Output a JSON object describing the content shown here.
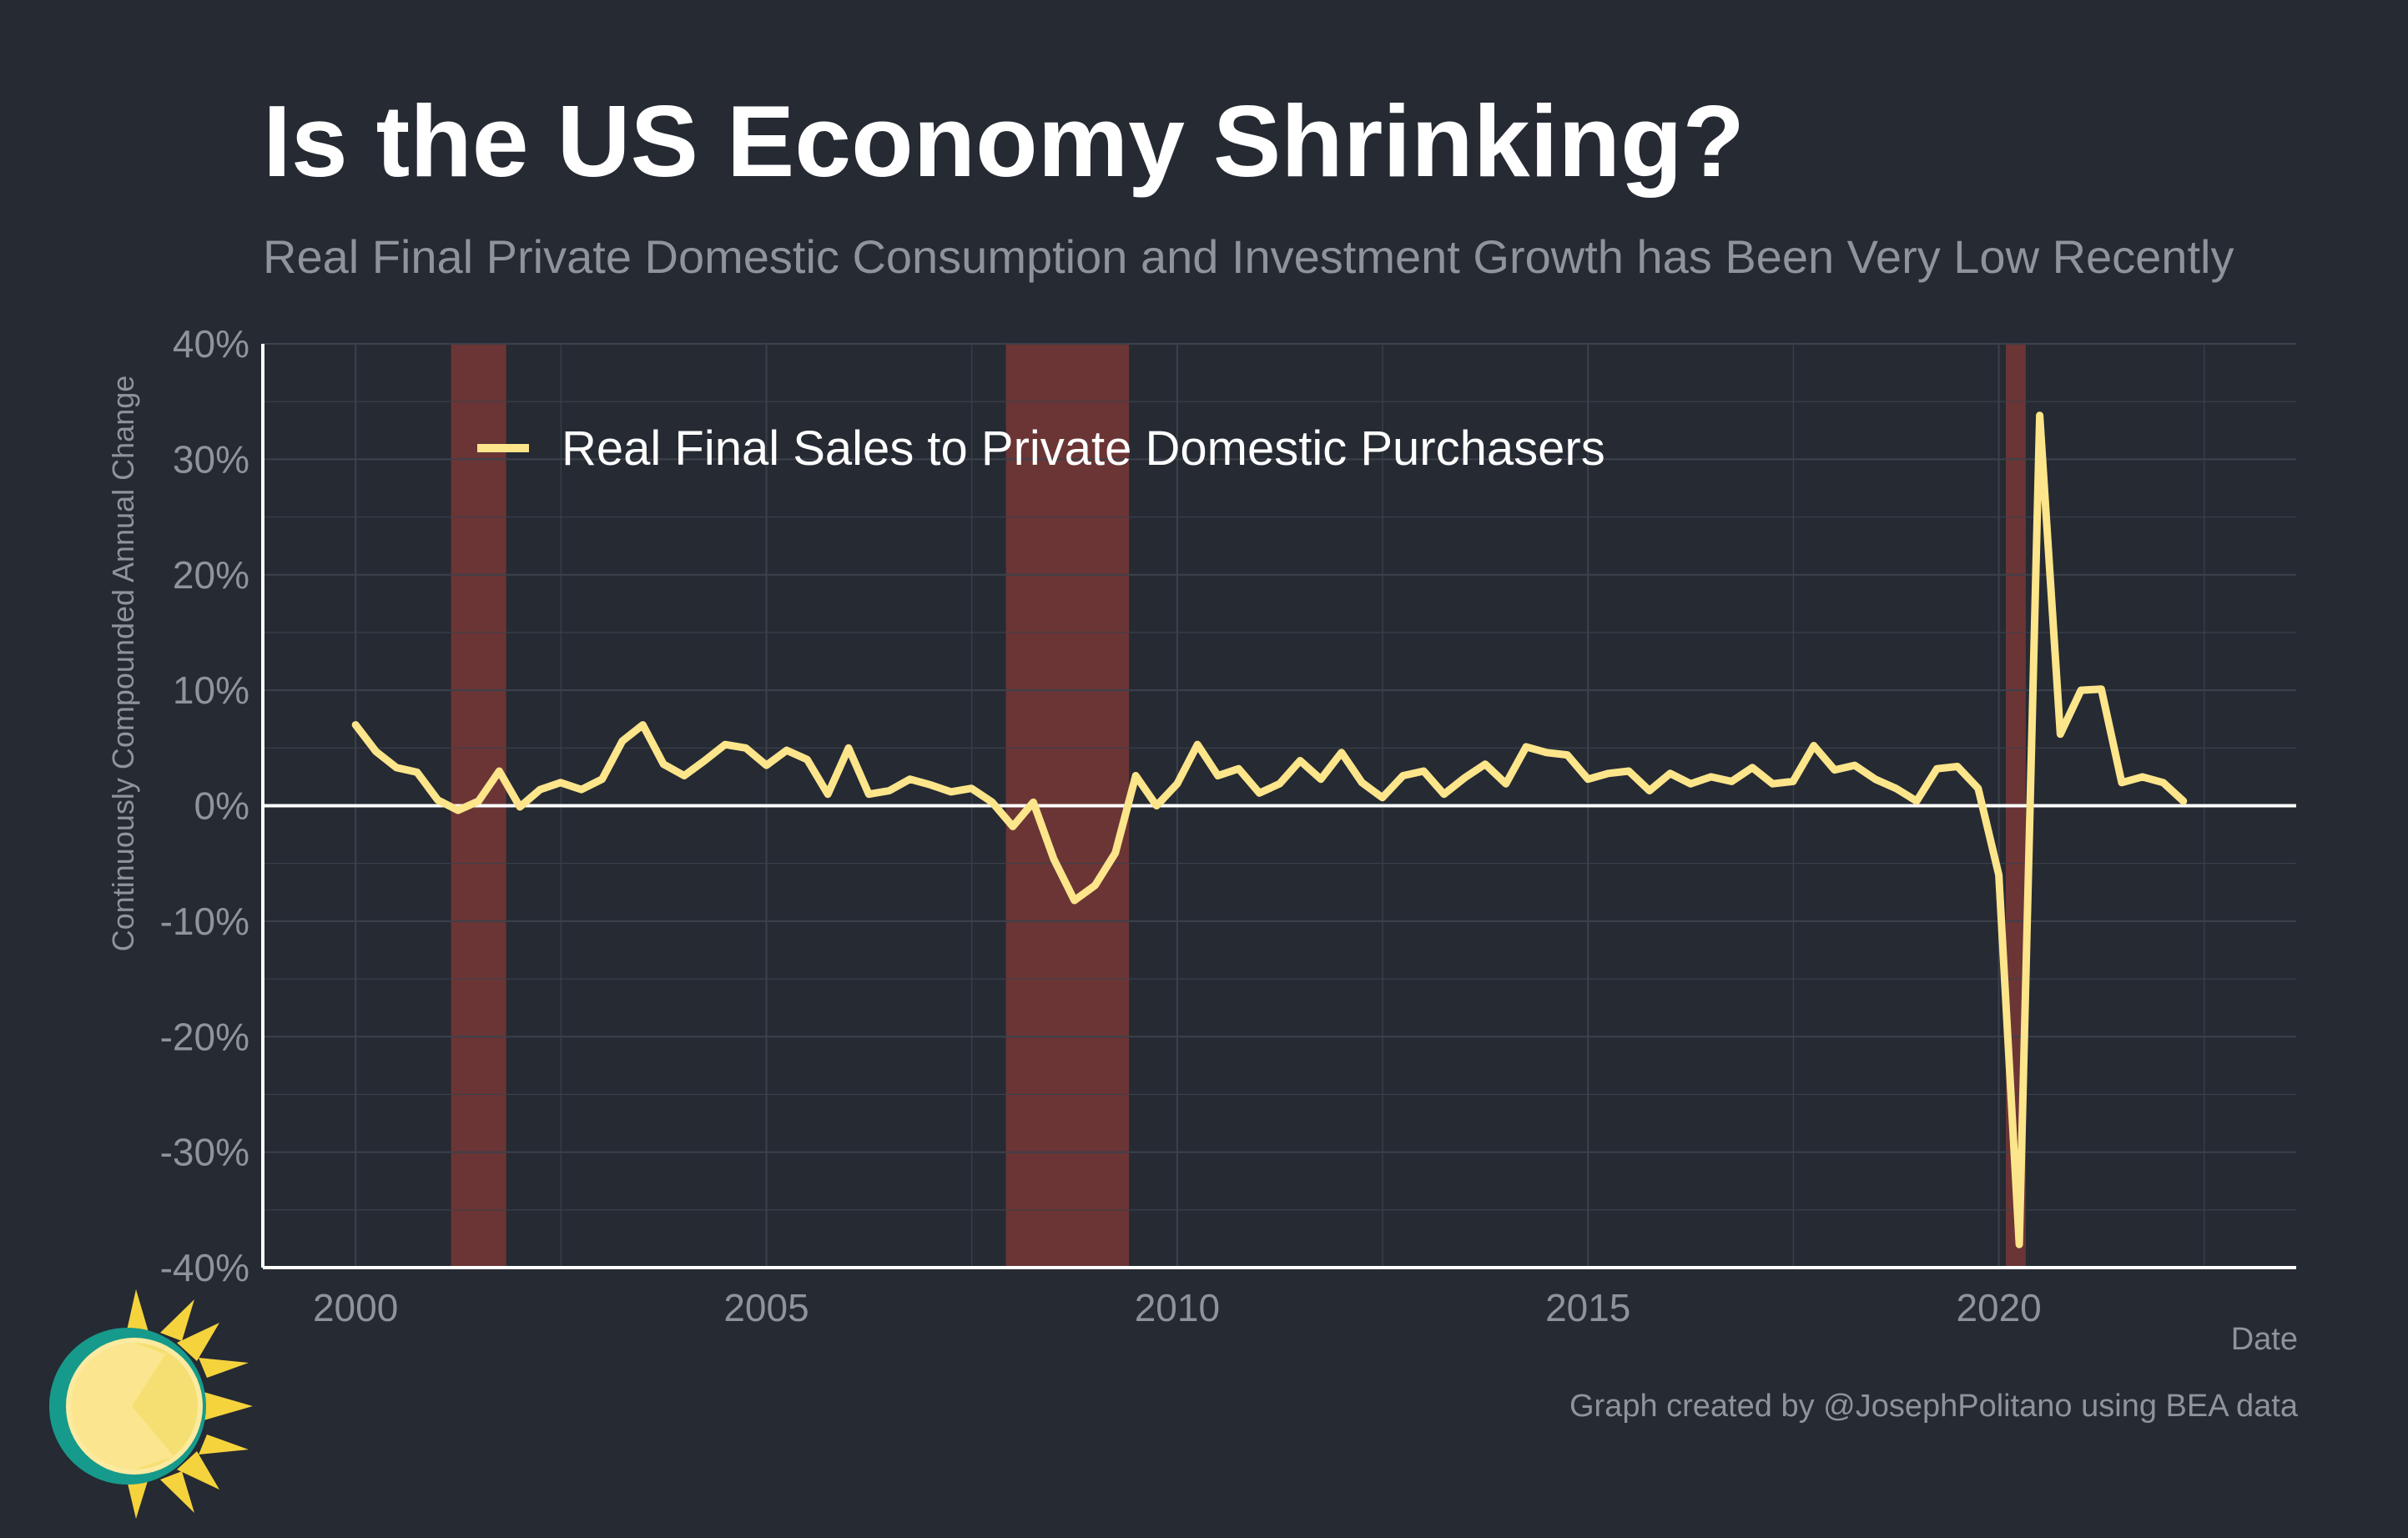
{
  "title": "Is the US Economy Shrinking?",
  "subtitle": "Real Final Private Domestic Consumption and Investment Growth has Been Very Low Recently",
  "caption": "Graph created by @JosephPolitano using BEA data",
  "colors": {
    "background": "#252a33",
    "series": "#fce58a",
    "recession": "#6b3535",
    "grid": "#3c414b",
    "axis": "#ffffff",
    "muted": "#8f939a"
  },
  "logo_icon": "sun-logo-icon",
  "chart_data": {
    "type": "line",
    "title": "Is the US Economy Shrinking?",
    "subtitle": "Real Final Private Domestic Consumption and Investment Growth has Been Very Low Recently",
    "xlabel": "Date",
    "ylabel": "Continuously Compounded Annual Change",
    "xlim": [
      "1998-11-15",
      "2023-08-15"
    ],
    "ylim": [
      -40,
      40
    ],
    "x_ticks": [
      2000,
      2005,
      2010,
      2015,
      2020
    ],
    "x_tick_labels": [
      "2000",
      "2005",
      "2010",
      "2015",
      "2020"
    ],
    "y_ticks": [
      -40,
      -30,
      -20,
      -10,
      0,
      10,
      20,
      30,
      40
    ],
    "y_tick_labels": [
      "-40%",
      "-30%",
      "-20%",
      "-10%",
      "0%",
      "10%",
      "20%",
      "30%",
      "40%"
    ],
    "grid": true,
    "zero_line": true,
    "legend_position": "top-left",
    "recessions": [
      [
        "2001-03-01",
        "2001-11-01"
      ],
      [
        "2007-12-01",
        "2009-06-01"
      ],
      [
        "2020-02-01",
        "2020-04-30"
      ]
    ],
    "series": [
      {
        "name": "Real Final Sales to Private Domestic Purchasers",
        "color": "#fce58a",
        "x": [
          "2000-01-01",
          "2000-04-01",
          "2000-07-01",
          "2000-10-01",
          "2001-01-01",
          "2001-04-01",
          "2001-07-01",
          "2001-10-01",
          "2002-01-01",
          "2002-04-01",
          "2002-07-01",
          "2002-10-01",
          "2003-01-01",
          "2003-04-01",
          "2003-07-01",
          "2003-10-01",
          "2004-01-01",
          "2004-04-01",
          "2004-07-01",
          "2004-10-01",
          "2005-01-01",
          "2005-04-01",
          "2005-07-01",
          "2005-10-01",
          "2006-01-01",
          "2006-04-01",
          "2006-07-01",
          "2006-10-01",
          "2007-01-01",
          "2007-04-01",
          "2007-07-01",
          "2007-10-01",
          "2008-01-01",
          "2008-04-01",
          "2008-07-01",
          "2008-10-01",
          "2009-01-01",
          "2009-04-01",
          "2009-07-01",
          "2009-10-01",
          "2010-01-01",
          "2010-04-01",
          "2010-07-01",
          "2010-10-01",
          "2011-01-01",
          "2011-04-01",
          "2011-07-01",
          "2011-10-01",
          "2012-01-01",
          "2012-04-01",
          "2012-07-01",
          "2012-10-01",
          "2013-01-01",
          "2013-04-01",
          "2013-07-01",
          "2013-10-01",
          "2014-01-01",
          "2014-04-01",
          "2014-07-01",
          "2014-10-01",
          "2015-01-01",
          "2015-04-01",
          "2015-07-01",
          "2015-10-01",
          "2016-01-01",
          "2016-04-01",
          "2016-07-01",
          "2016-10-01",
          "2017-01-01",
          "2017-04-01",
          "2017-07-01",
          "2017-10-01",
          "2018-01-01",
          "2018-04-01",
          "2018-07-01",
          "2018-10-01",
          "2019-01-01",
          "2019-04-01",
          "2019-07-01",
          "2019-10-01",
          "2020-01-01",
          "2020-04-01",
          "2020-07-01",
          "2020-10-01",
          "2021-01-01",
          "2021-04-01",
          "2021-07-01",
          "2021-10-01",
          "2022-01-01",
          "2022-04-01"
        ],
        "y": [
          7.0,
          4.7,
          3.3,
          2.9,
          0.5,
          -0.4,
          0.4,
          3.0,
          -0.1,
          1.4,
          2.0,
          1.4,
          2.3,
          5.6,
          7.0,
          3.6,
          2.6,
          3.9,
          5.3,
          5.0,
          3.5,
          4.8,
          4.0,
          1.0,
          5.0,
          1.0,
          1.3,
          2.3,
          1.8,
          1.2,
          1.5,
          0.3,
          -1.8,
          0.3,
          -4.6,
          -8.2,
          -6.9,
          -4.1,
          2.6,
          0.0,
          1.9,
          5.3,
          2.6,
          3.2,
          1.1,
          1.9,
          3.9,
          2.3,
          4.6,
          2.0,
          0.7,
          2.6,
          3.0,
          1.0,
          2.4,
          3.6,
          1.9,
          5.1,
          4.6,
          4.4,
          2.3,
          2.8,
          3.0,
          1.3,
          2.8,
          1.9,
          2.5,
          2.1,
          3.3,
          1.9,
          2.1,
          5.2,
          3.1,
          3.5,
          2.3,
          1.5,
          0.4,
          3.2,
          3.4,
          1.5,
          -6.0,
          -38.0,
          33.8,
          6.2,
          10.0,
          10.1,
          2.0,
          2.5,
          2.0,
          0.4
        ]
      }
    ]
  }
}
